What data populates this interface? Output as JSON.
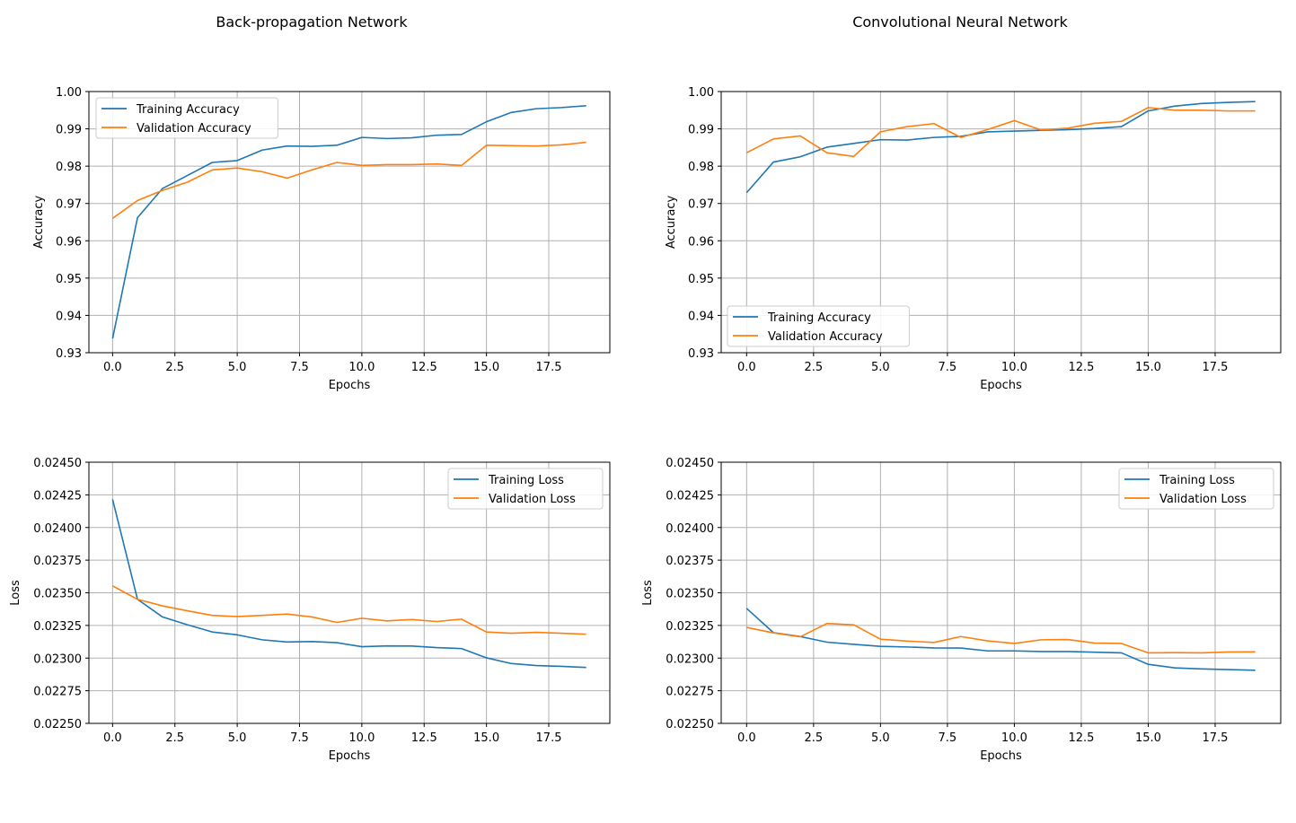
{
  "column_titles": [
    "Back-propagation Network",
    "Convolutional Neural Network"
  ],
  "colors": {
    "training": "#1f77b4",
    "validation": "#ff7f0e",
    "grid": "#b0b0b0"
  },
  "chart_data": [
    {
      "type": "line",
      "panel": "top-left",
      "title": "",
      "xlabel": "Epochs",
      "ylabel": "Accuracy",
      "xlim": [
        -0.95,
        19.95
      ],
      "ylim": [
        0.93,
        1.0
      ],
      "xticks": [
        0,
        2.5,
        5,
        7.5,
        10,
        12.5,
        15,
        17.5
      ],
      "xtick_labels": [
        "0.0",
        "2.5",
        "5.0",
        "7.5",
        "10.0",
        "12.5",
        "15.0",
        "17.5"
      ],
      "yticks": [
        0.93,
        0.94,
        0.95,
        0.96,
        0.97,
        0.98,
        0.99,
        1.0
      ],
      "ytick_labels": [
        "0.93",
        "0.94",
        "0.95",
        "0.96",
        "0.97",
        "0.98",
        "0.99",
        "1.00"
      ],
      "grid": true,
      "legend_position": "upper-left",
      "x": [
        0,
        1,
        2,
        3,
        4,
        5,
        6,
        7,
        8,
        9,
        10,
        11,
        12,
        13,
        14,
        15,
        16,
        17,
        18,
        19
      ],
      "series": [
        {
          "name": "Training Accuracy",
          "color": "#1f77b4",
          "values": [
            0.9338,
            0.9662,
            0.974,
            0.9775,
            0.981,
            0.9815,
            0.9843,
            0.9854,
            0.9853,
            0.9856,
            0.9877,
            0.9874,
            0.9876,
            0.9883,
            0.9885,
            0.9919,
            0.9944,
            0.9954,
            0.9957,
            0.9962
          ]
        },
        {
          "name": "Validation Accuracy",
          "color": "#ff7f0e",
          "values": [
            0.966,
            0.9708,
            0.9735,
            0.9757,
            0.979,
            0.9795,
            0.9785,
            0.9768,
            0.979,
            0.981,
            0.9802,
            0.9804,
            0.9804,
            0.9806,
            0.9802,
            0.9856,
            0.9855,
            0.9854,
            0.9857,
            0.9864
          ]
        }
      ]
    },
    {
      "type": "line",
      "panel": "top-right",
      "title": "",
      "xlabel": "Epochs",
      "ylabel": "Accuracy",
      "xlim": [
        -0.95,
        19.95
      ],
      "ylim": [
        0.93,
        1.0
      ],
      "xticks": [
        0,
        2.5,
        5,
        7.5,
        10,
        12.5,
        15,
        17.5
      ],
      "xtick_labels": [
        "0.0",
        "2.5",
        "5.0",
        "7.5",
        "10.0",
        "12.5",
        "15.0",
        "17.5"
      ],
      "yticks": [
        0.93,
        0.94,
        0.95,
        0.96,
        0.97,
        0.98,
        0.99,
        1.0
      ],
      "ytick_labels": [
        "0.93",
        "0.94",
        "0.95",
        "0.96",
        "0.97",
        "0.98",
        "0.99",
        "1.00"
      ],
      "grid": true,
      "legend_position": "lower-left",
      "x": [
        0,
        1,
        2,
        3,
        4,
        5,
        6,
        7,
        8,
        9,
        10,
        11,
        12,
        13,
        14,
        15,
        16,
        17,
        18,
        19
      ],
      "series": [
        {
          "name": "Training Accuracy",
          "color": "#1f77b4",
          "values": [
            0.9729,
            0.9811,
            0.9825,
            0.9851,
            0.9861,
            0.9871,
            0.987,
            0.9877,
            0.988,
            0.9892,
            0.9894,
            0.9896,
            0.9898,
            0.9901,
            0.9906,
            0.9948,
            0.9961,
            0.9968,
            0.9971,
            0.9973
          ]
        },
        {
          "name": "Validation Accuracy",
          "color": "#ff7f0e",
          "values": [
            0.9836,
            0.9873,
            0.9881,
            0.9836,
            0.9826,
            0.9892,
            0.9906,
            0.9914,
            0.9877,
            0.9898,
            0.9922,
            0.9897,
            0.9902,
            0.9915,
            0.992,
            0.9957,
            0.995,
            0.995,
            0.9948,
            0.9948
          ]
        }
      ]
    },
    {
      "type": "line",
      "panel": "bottom-left",
      "title": "",
      "xlabel": "Epochs",
      "ylabel": "Loss",
      "xlim": [
        -0.95,
        19.95
      ],
      "ylim": [
        0.0225,
        0.0245
      ],
      "xticks": [
        0,
        2.5,
        5,
        7.5,
        10,
        12.5,
        15,
        17.5
      ],
      "xtick_labels": [
        "0.0",
        "2.5",
        "5.0",
        "7.5",
        "10.0",
        "12.5",
        "15.0",
        "17.5"
      ],
      "yticks": [
        0.0225,
        0.02275,
        0.023,
        0.02325,
        0.0235,
        0.02375,
        0.024,
        0.02425,
        0.0245
      ],
      "ytick_labels": [
        "0.02250",
        "0.02275",
        "0.02300",
        "0.02325",
        "0.02350",
        "0.02375",
        "0.02400",
        "0.02425",
        "0.02450"
      ],
      "grid": true,
      "legend_position": "upper-right",
      "x": [
        0,
        1,
        2,
        3,
        4,
        5,
        6,
        7,
        8,
        9,
        10,
        11,
        12,
        13,
        14,
        15,
        16,
        17,
        18,
        19
      ],
      "series": [
        {
          "name": "Training Loss",
          "color": "#1f77b4",
          "values": [
            0.024215,
            0.02345,
            0.023315,
            0.023255,
            0.0232,
            0.023178,
            0.02314,
            0.023123,
            0.023127,
            0.023118,
            0.023087,
            0.023093,
            0.023092,
            0.02308,
            0.023073,
            0.023002,
            0.022958,
            0.022943,
            0.022937,
            0.022928
          ]
        },
        {
          "name": "Validation Loss",
          "color": "#ff7f0e",
          "values": [
            0.023553,
            0.02345,
            0.0234,
            0.023362,
            0.023327,
            0.023318,
            0.023327,
            0.023337,
            0.023315,
            0.023273,
            0.023305,
            0.023285,
            0.023295,
            0.02328,
            0.023298,
            0.0232,
            0.02319,
            0.023197,
            0.02319,
            0.023183
          ]
        }
      ]
    },
    {
      "type": "line",
      "panel": "bottom-right",
      "title": "",
      "xlabel": "Epochs",
      "ylabel": "Loss",
      "xlim": [
        -0.95,
        19.95
      ],
      "ylim": [
        0.0225,
        0.0245
      ],
      "xticks": [
        0,
        2.5,
        5,
        7.5,
        10,
        12.5,
        15,
        17.5
      ],
      "xtick_labels": [
        "0.0",
        "2.5",
        "5.0",
        "7.5",
        "10.0",
        "12.5",
        "15.0",
        "17.5"
      ],
      "yticks": [
        0.0225,
        0.02275,
        0.023,
        0.02325,
        0.0235,
        0.02375,
        0.024,
        0.02425,
        0.0245
      ],
      "ytick_labels": [
        "0.02250",
        "0.02275",
        "0.02300",
        "0.02325",
        "0.02350",
        "0.02375",
        "0.02400",
        "0.02425",
        "0.02450"
      ],
      "grid": true,
      "legend_position": "upper-right",
      "x": [
        0,
        1,
        2,
        3,
        4,
        5,
        6,
        7,
        8,
        9,
        10,
        11,
        12,
        13,
        14,
        15,
        16,
        17,
        18,
        19
      ],
      "series": [
        {
          "name": "Training Loss",
          "color": "#1f77b4",
          "values": [
            0.02338,
            0.023195,
            0.023165,
            0.023122,
            0.023105,
            0.02309,
            0.023085,
            0.023078,
            0.023077,
            0.023055,
            0.023055,
            0.02305,
            0.02305,
            0.023045,
            0.02304,
            0.022952,
            0.022925,
            0.022917,
            0.022912,
            0.022907
          ]
        },
        {
          "name": "Validation Loss",
          "color": "#ff7f0e",
          "values": [
            0.023235,
            0.023193,
            0.023163,
            0.023265,
            0.023255,
            0.023145,
            0.02313,
            0.02312,
            0.023165,
            0.023132,
            0.023112,
            0.02314,
            0.023142,
            0.023115,
            0.023112,
            0.02304,
            0.023042,
            0.02304,
            0.023047,
            0.023048
          ]
        }
      ]
    }
  ]
}
